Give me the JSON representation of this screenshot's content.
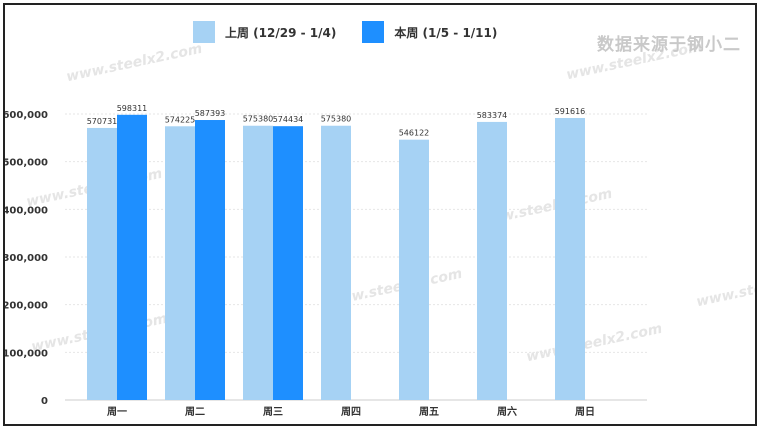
{
  "legend": {
    "items": [
      {
        "label": "上周 (12/29 - 1/4)",
        "color": "#a6d2f4"
      },
      {
        "label": "本周 (1/5 - 1/11)",
        "color": "#1e8fff"
      }
    ]
  },
  "source_text": "数据来源于钢小二",
  "watermark_text": "www.steelx2.com",
  "chart_data": {
    "type": "bar",
    "categories": [
      "周一",
      "周二",
      "周三",
      "周四",
      "周五",
      "周六",
      "周日"
    ],
    "series": [
      {
        "name": "上周 (12/29 - 1/4)",
        "color": "#a6d2f4",
        "values": [
          570731,
          574225,
          575380,
          575380,
          546122,
          583374,
          591616
        ]
      },
      {
        "name": "本周 (1/5 - 1/11)",
        "color": "#1e8fff",
        "values": [
          598311,
          587393,
          574434,
          null,
          null,
          null,
          null
        ]
      }
    ],
    "ylim": [
      0,
      600000
    ],
    "yticks": [
      "0",
      "100,000",
      "200,000",
      "300,000",
      "400,000",
      "500,000",
      "600,000"
    ],
    "grid": true,
    "legend_position": "top-center",
    "title": "",
    "xlabel": "",
    "ylabel": ""
  }
}
